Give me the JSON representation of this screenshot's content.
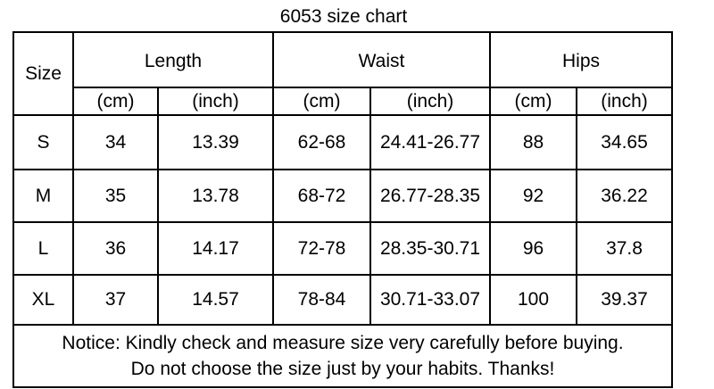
{
  "title": "6053 size chart",
  "table": {
    "size_header": "Size",
    "groups": [
      "Length",
      "Waist",
      "Hips"
    ],
    "units": [
      "(cm)",
      "(inch)",
      "(cm)",
      "(inch)",
      "(cm)",
      "(inch)"
    ],
    "rows": [
      [
        "S",
        "34",
        "13.39",
        "62-68",
        "24.41-26.77",
        "88",
        "34.65"
      ],
      [
        "M",
        "35",
        "13.78",
        "68-72",
        "26.77-28.35",
        "92",
        "36.22"
      ],
      [
        "L",
        "36",
        "14.17",
        "72-78",
        "28.35-30.71",
        "96",
        "37.8"
      ],
      [
        "XL",
        "37",
        "14.57",
        "78-84",
        "30.71-33.07",
        "100",
        "39.37"
      ]
    ],
    "notice": [
      "Notice: Kindly check and measure size very carefully before buying.",
      "Do not choose the size just by your habits. Thanks!"
    ]
  }
}
